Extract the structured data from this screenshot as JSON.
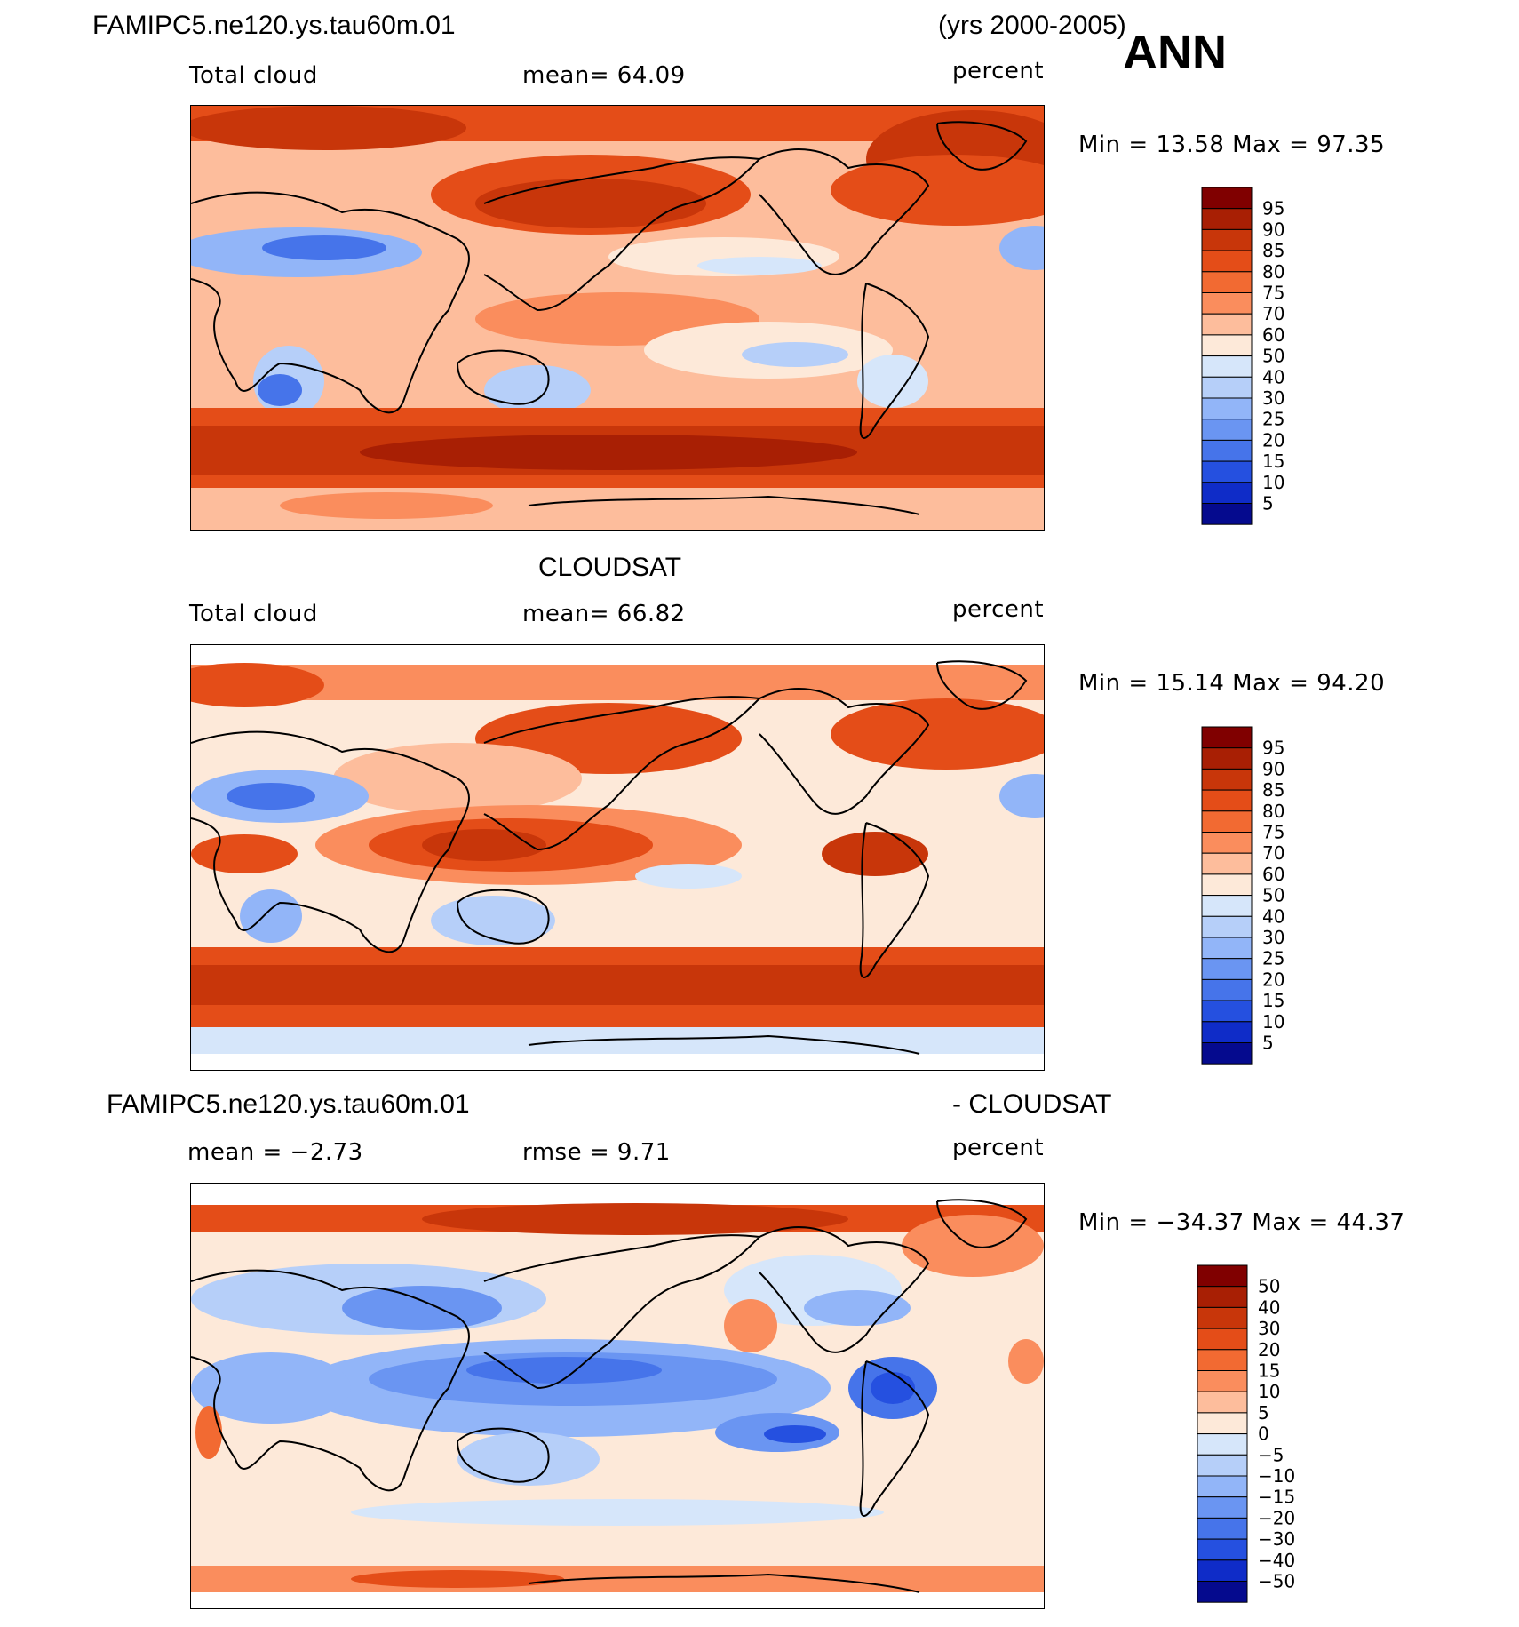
{
  "header": {
    "case_name": "FAMIPC5.ne120.ys.tau60m.01",
    "years": "(yrs 2000-2005)",
    "season": "ANN"
  },
  "panels": [
    {
      "heading": "",
      "variable": "Total cloud",
      "stat": "mean=   64.09",
      "units": "percent",
      "minmax": "Min =   13.58  Max =   97.35",
      "colorbar": {
        "labels": [
          "95",
          "90",
          "85",
          "80",
          "75",
          "70",
          "60",
          "50",
          "40",
          "30",
          "25",
          "20",
          "15",
          "10",
          "5"
        ],
        "colors": [
          "#800000",
          "#a81f04",
          "#c8360a",
          "#e44d18",
          "#f26a32",
          "#fa8d5d",
          "#fdbd9c",
          "#fde9d9",
          "#d6e6fa",
          "#b6cff9",
          "#92b5f8",
          "#6a95f2",
          "#4674ea",
          "#2550e0",
          "#0f2cc8",
          "#050a8e"
        ]
      },
      "map_description": "Model total cloud fraction, annual mean"
    },
    {
      "heading": "CLOUDSAT",
      "variable": "Total cloud",
      "stat": "mean=   66.82",
      "units": "percent",
      "minmax": "Min =   15.14  Max =   94.20",
      "colorbar": {
        "labels": [
          "95",
          "90",
          "85",
          "80",
          "75",
          "70",
          "60",
          "50",
          "40",
          "30",
          "25",
          "20",
          "15",
          "10",
          "5"
        ],
        "colors": [
          "#800000",
          "#a81f04",
          "#c8360a",
          "#e44d18",
          "#f26a32",
          "#fa8d5d",
          "#fdbd9c",
          "#fde9d9",
          "#d6e6fa",
          "#b6cff9",
          "#92b5f8",
          "#6a95f2",
          "#4674ea",
          "#2550e0",
          "#0f2cc8",
          "#050a8e"
        ]
      },
      "map_description": "CloudSat total cloud fraction, annual mean"
    },
    {
      "heading_left": "FAMIPC5.ne120.ys.tau60m.01",
      "heading_right": "- CLOUDSAT",
      "variable": "mean =   −2.73",
      "stat": "rmse =     9.71",
      "units": "percent",
      "minmax": "Min =  −34.37  Max =    44.37",
      "colorbar": {
        "labels": [
          "50",
          "40",
          "30",
          "20",
          "15",
          "10",
          "5",
          "0",
          "−5",
          "−10",
          "−15",
          "−20",
          "−30",
          "−40",
          "−50"
        ],
        "colors": [
          "#800000",
          "#a81f04",
          "#c8360a",
          "#e44d18",
          "#f26a32",
          "#fa8d5d",
          "#fdbd9c",
          "#fde9d9",
          "#d6e6fa",
          "#b6cff9",
          "#92b5f8",
          "#6a95f2",
          "#4674ea",
          "#2550e0",
          "#0f2cc8",
          "#050a8e"
        ]
      },
      "map_description": "Difference model minus CloudSat"
    }
  ]
}
